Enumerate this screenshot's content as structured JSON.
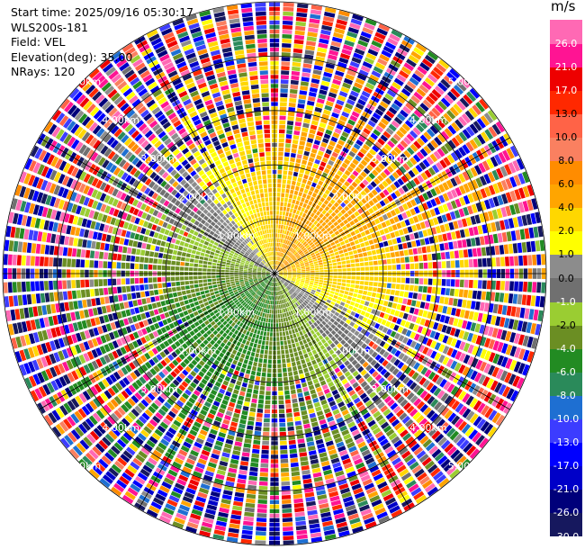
{
  "header": {
    "start_time": "Start time: 2025/09/16 05:30:17",
    "instrument": "WLS200s-181",
    "field": "Field: VEL",
    "elevation": "Elevation(deg): 35.00",
    "nrays": "NRays: 120"
  },
  "chart_data": {
    "type": "heatmap",
    "projection": "polar PPI",
    "field": "VEL",
    "units": "m/s",
    "elevation_deg": 35.0,
    "n_rays": 120,
    "max_range_km": 5.0,
    "range_rings_km": [
      1.0,
      2.0,
      3.0,
      4.0,
      5.0
    ],
    "ring_labels": [
      "1.00km",
      "2.00km",
      "3.00km",
      "4.00km",
      "5.00km"
    ],
    "colorbar": {
      "label": "m/s",
      "ticks": [
        "26.0",
        "21.0",
        "17.0",
        "13.0",
        "10.0",
        "8.0",
        "6.0",
        "4.0",
        "2.0",
        "1.0",
        "0.0",
        "-1.0",
        "-2.0",
        "-4.0",
        "-6.0",
        "-8.0",
        "-10.0",
        "-13.0",
        "-17.0",
        "-21.0",
        "-26.0",
        "-30.0"
      ],
      "bounds": [
        -30,
        -26,
        -21,
        -17,
        -13,
        -10,
        -8,
        -6,
        -4,
        -2,
        -1,
        0,
        1,
        2,
        4,
        6,
        8,
        10,
        13,
        17,
        21,
        26,
        30
      ],
      "colors": [
        "#16185e",
        "#00007a",
        "#0000c8",
        "#0000ff",
        "#3c3cff",
        "#1e6fd2",
        "#2a8a5a",
        "#228b22",
        "#6b8e23",
        "#9acd32",
        "#707070",
        "#8c8c8c",
        "#ffff00",
        "#ffd700",
        "#ffa500",
        "#ff8c00",
        "#fa8060",
        "#ff6347",
        "#ff2800",
        "#ee0000",
        "#ff1493",
        "#ff69b4"
      ]
    },
    "pattern": {
      "description": "near-range dipole: positive velocities (yellow/orange) toward the north-east, negative velocities (green) toward the south-west; noisy multicolor returns beyond ~2.5 km",
      "positive_lobe_azimuth_deg": 40,
      "negative_lobe_azimuth_deg": 220,
      "peak_velocity_ms": 5.0,
      "clean_range_km": 2.5
    }
  }
}
